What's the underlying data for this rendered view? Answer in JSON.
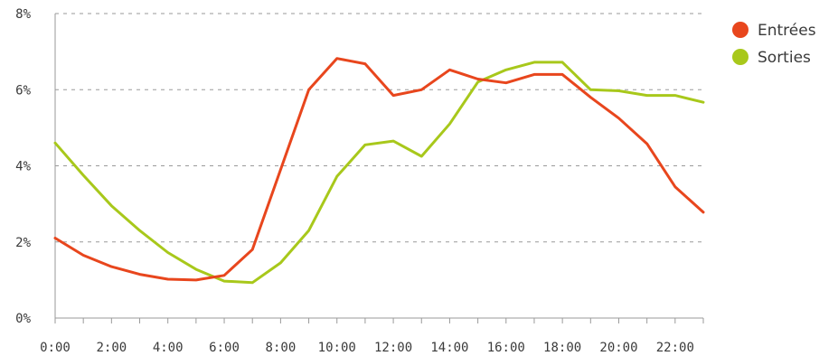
{
  "chart_data": {
    "type": "line",
    "x": [
      "0:00",
      "1:00",
      "2:00",
      "3:00",
      "4:00",
      "5:00",
      "6:00",
      "7:00",
      "8:00",
      "9:00",
      "10:00",
      "11:00",
      "12:00",
      "13:00",
      "14:00",
      "15:00",
      "16:00",
      "17:00",
      "18:00",
      "19:00",
      "20:00",
      "21:00",
      "22:00",
      "23:00"
    ],
    "x_tick_labels": [
      "0:00",
      "2:00",
      "4:00",
      "6:00",
      "8:00",
      "10:00",
      "12:00",
      "14:00",
      "16:00",
      "18:00",
      "20:00",
      "22:00"
    ],
    "y_tick_labels": [
      "0%",
      "2%",
      "4%",
      "6%",
      "8%"
    ],
    "y_ticks": [
      0,
      2,
      4,
      6,
      8
    ],
    "ylim": [
      0,
      8
    ],
    "y_unit": "%",
    "grid": true,
    "legend_position": "top-right",
    "series": [
      {
        "name": "Entrées",
        "color": "#e8461d",
        "values": [
          2.1,
          1.65,
          1.35,
          1.15,
          1.02,
          1.0,
          1.12,
          1.8,
          3.9,
          6.0,
          6.82,
          6.68,
          5.85,
          6.0,
          6.52,
          6.28,
          6.18,
          6.4,
          6.4,
          5.8,
          5.25,
          4.58,
          3.45,
          2.78
        ]
      },
      {
        "name": "Sorties",
        "color": "#a8c81b",
        "values": [
          4.6,
          3.75,
          2.95,
          2.3,
          1.72,
          1.28,
          0.97,
          0.93,
          1.45,
          2.3,
          3.72,
          4.55,
          4.65,
          4.25,
          5.1,
          6.2,
          6.52,
          6.72,
          6.72,
          6.0,
          5.97,
          5.85,
          5.85,
          5.67
        ]
      }
    ]
  }
}
